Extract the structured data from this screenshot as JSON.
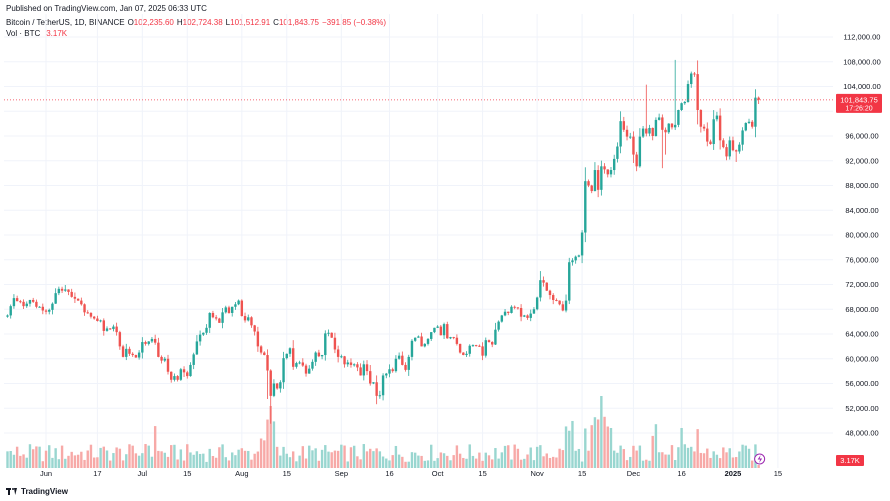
{
  "header": {
    "published": "Published on TradingView.com, Jan 07, 2025 06:33 UTC",
    "symbol": "Bitcoin / TetherUS, 1D, BINANCE",
    "o_label": "O",
    "o_value": "102,235.60",
    "h_label": "H",
    "h_value": "102,724.38",
    "l_label": "L",
    "l_value": "101,512.91",
    "c_label": "C",
    "c_value": "101,843.75",
    "change": "−391.85 (−0.38%)",
    "vol_label": "Vol · BTC",
    "vol_value": "3.17K"
  },
  "footer": {
    "brand": "TradingView"
  },
  "colors": {
    "up": "#26a69a",
    "down": "#ef5350",
    "price_line": "#f23645",
    "grid": "#f0f3fa"
  },
  "chart_data": {
    "type": "candlestick",
    "y_axis": {
      "min": 44000,
      "max": 114000,
      "ticks": [
        112000,
        108000,
        104000,
        100000,
        96000,
        92000,
        88000,
        84000,
        80000,
        76000,
        72000,
        68000,
        64000,
        60000,
        56000,
        52000,
        48000
      ],
      "tick_labels": [
        "112,000.00",
        "108,000.00",
        "104,000.00",
        "",
        "96,000.00",
        "92,000.00",
        "88,000.00",
        "84,000.00",
        "80,000.00",
        "76,000.00",
        "72,000.00",
        "68,000.00",
        "64,000.00",
        "60,000.00",
        "56,000.00",
        "52,000.00",
        "48,000.00"
      ]
    },
    "x_axis": {
      "labels": [
        {
          "label": "Jun",
          "date": "2024-06-01"
        },
        {
          "label": "17",
          "date": "2024-06-17"
        },
        {
          "label": "Jul",
          "date": "2024-07-01"
        },
        {
          "label": "15",
          "date": "2024-07-15"
        },
        {
          "label": "Aug",
          "date": "2024-08-01"
        },
        {
          "label": "15",
          "date": "2024-08-15"
        },
        {
          "label": "Sep",
          "date": "2024-09-01"
        },
        {
          "label": "16",
          "date": "2024-09-16"
        },
        {
          "label": "Oct",
          "date": "2024-10-01"
        },
        {
          "label": "15",
          "date": "2024-10-15"
        },
        {
          "label": "Nov",
          "date": "2024-11-01"
        },
        {
          "label": "15",
          "date": "2024-11-15"
        },
        {
          "label": "Dec",
          "date": "2024-12-01"
        },
        {
          "label": "16",
          "date": "2024-12-16"
        },
        {
          "label": "2025",
          "date": "2025-01-01"
        },
        {
          "label": "15",
          "date": "2025-01-15"
        }
      ]
    },
    "start_date": "2024-05-20",
    "closes": [
      67000,
      68500,
      69800,
      69300,
      69200,
      68500,
      68900,
      69500,
      69200,
      68400,
      68400,
      67800,
      67600,
      67900,
      68900,
      70600,
      71300,
      71000,
      71200,
      70800,
      70000,
      69700,
      69400,
      68800,
      67500,
      67400,
      66800,
      66500,
      66100,
      66200,
      64500,
      64900,
      64800,
      65200,
      64300,
      62000,
      60300,
      61600,
      60800,
      60600,
      60200,
      61000,
      62700,
      62400,
      62800,
      63200,
      62600,
      60300,
      59700,
      60000,
      57900,
      56600,
      57200,
      56600,
      58300,
      57800,
      57200,
      59000,
      60700,
      62800,
      63900,
      64200,
      65000,
      67400,
      66700,
      66500,
      65800,
      67500,
      68300,
      67400,
      68400,
      68800,
      69400,
      66900,
      66200,
      66700,
      65400,
      64400,
      62000,
      61000,
      60600,
      58100,
      54000,
      56000,
      55200,
      56200,
      60100,
      60800,
      61700,
      58700,
      59300,
      59400,
      58900,
      57600,
      58400,
      59500,
      61000,
      60400,
      60600,
      64100,
      64200,
      63400,
      61500,
      60300,
      60400,
      59100,
      59400,
      59000,
      59100,
      58600,
      57300,
      59100,
      58000,
      56000,
      56200,
      54000,
      54100,
      57300,
      57600,
      58300,
      58000,
      60000,
      60500,
      59000,
      58200,
      60300,
      62900,
      63400,
      63600,
      62000,
      62400,
      63200,
      64300,
      65000,
      65200,
      63800,
      65600,
      63300,
      63500,
      63400,
      62400,
      61000,
      60600,
      60800,
      62100,
      62200,
      62100,
      62000,
      60500,
      63000,
      62700,
      62300,
      64700,
      66000,
      67000,
      67600,
      67400,
      68400,
      68300,
      68200,
      66800,
      67000,
      66600,
      67300,
      68000,
      69900,
      72700,
      72300,
      71000,
      70300,
      69500,
      69400,
      68800,
      67800,
      69400,
      75600,
      75900,
      76500,
      76700,
      80400,
      88700,
      88000,
      87100,
      90500,
      87300,
      91100,
      90600,
      89800,
      90500,
      92300,
      94300,
      98400,
      97000,
      95900,
      95900,
      93000,
      91100,
      95900,
      97200,
      96400,
      97300,
      96000,
      98600,
      99000,
      97000,
      96600,
      98000,
      97400,
      97800,
      100200,
      101300,
      101500,
      104400,
      106100,
      106000,
      100200,
      97500,
      97200,
      95100,
      94700,
      98700,
      99300,
      95300,
      94200,
      92700,
      95300,
      93700,
      93500,
      94600,
      96900,
      98100,
      98300,
      97500,
      102200,
      101843.75
    ],
    "current_price_label": "101,843.75",
    "countdown_label": "17:26:20",
    "volume_label": "3.17K"
  }
}
